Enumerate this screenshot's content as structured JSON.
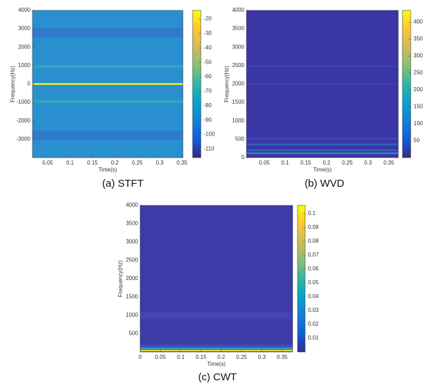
{
  "chart_data": [
    {
      "type": "heatmap",
      "caption": "(a) STFT",
      "xlabel": "Time(s)",
      "ylabel": "Frequency(Hz)",
      "xlim": [
        0.016,
        0.352
      ],
      "xticks": [
        0.05,
        0.1,
        0.15,
        0.2,
        0.25,
        0.3,
        0.35
      ],
      "ylim": [
        -4000,
        4000
      ],
      "yticks": [
        -3000,
        -2000,
        -1000,
        0,
        1000,
        2000,
        3000,
        4000
      ],
      "clim": [
        -116,
        -14
      ],
      "cticks": [
        -110,
        -100,
        -90,
        -80,
        -70,
        -60,
        -50,
        -40,
        -30,
        -20
      ]
    },
    {
      "type": "heatmap",
      "caption": "(b) WVD",
      "xlabel": "Time(s)",
      "ylabel": "Frequency(Hz)",
      "xlim": [
        0.007,
        0.373
      ],
      "xticks": [
        0.05,
        0.1,
        0.15,
        0.2,
        0.25,
        0.3,
        0.35
      ],
      "ylim": [
        0,
        4000
      ],
      "yticks": [
        0,
        500,
        1000,
        1500,
        2000,
        2500,
        3000,
        3500,
        4000
      ],
      "clim": [
        0,
        435
      ],
      "cticks": [
        50,
        100,
        150,
        200,
        250,
        300,
        350,
        400
      ]
    },
    {
      "type": "heatmap",
      "caption": "(c) CWT",
      "xlabel": "Time(s)",
      "ylabel": "Frequency(Hz)",
      "xlim": [
        0,
        0.376
      ],
      "xticks": [
        0,
        0.05,
        0.1,
        0.15,
        0.2,
        0.25,
        0.3,
        0.35
      ],
      "ylim": [
        0,
        4000
      ],
      "yticks": [
        500,
        1000,
        1500,
        2000,
        2500,
        3000,
        3500,
        4000
      ],
      "clim": [
        0,
        0.106
      ],
      "cticks": [
        0.01,
        0.02,
        0.03,
        0.04,
        0.05,
        0.06,
        0.07,
        0.08,
        0.09,
        0.1
      ]
    }
  ]
}
